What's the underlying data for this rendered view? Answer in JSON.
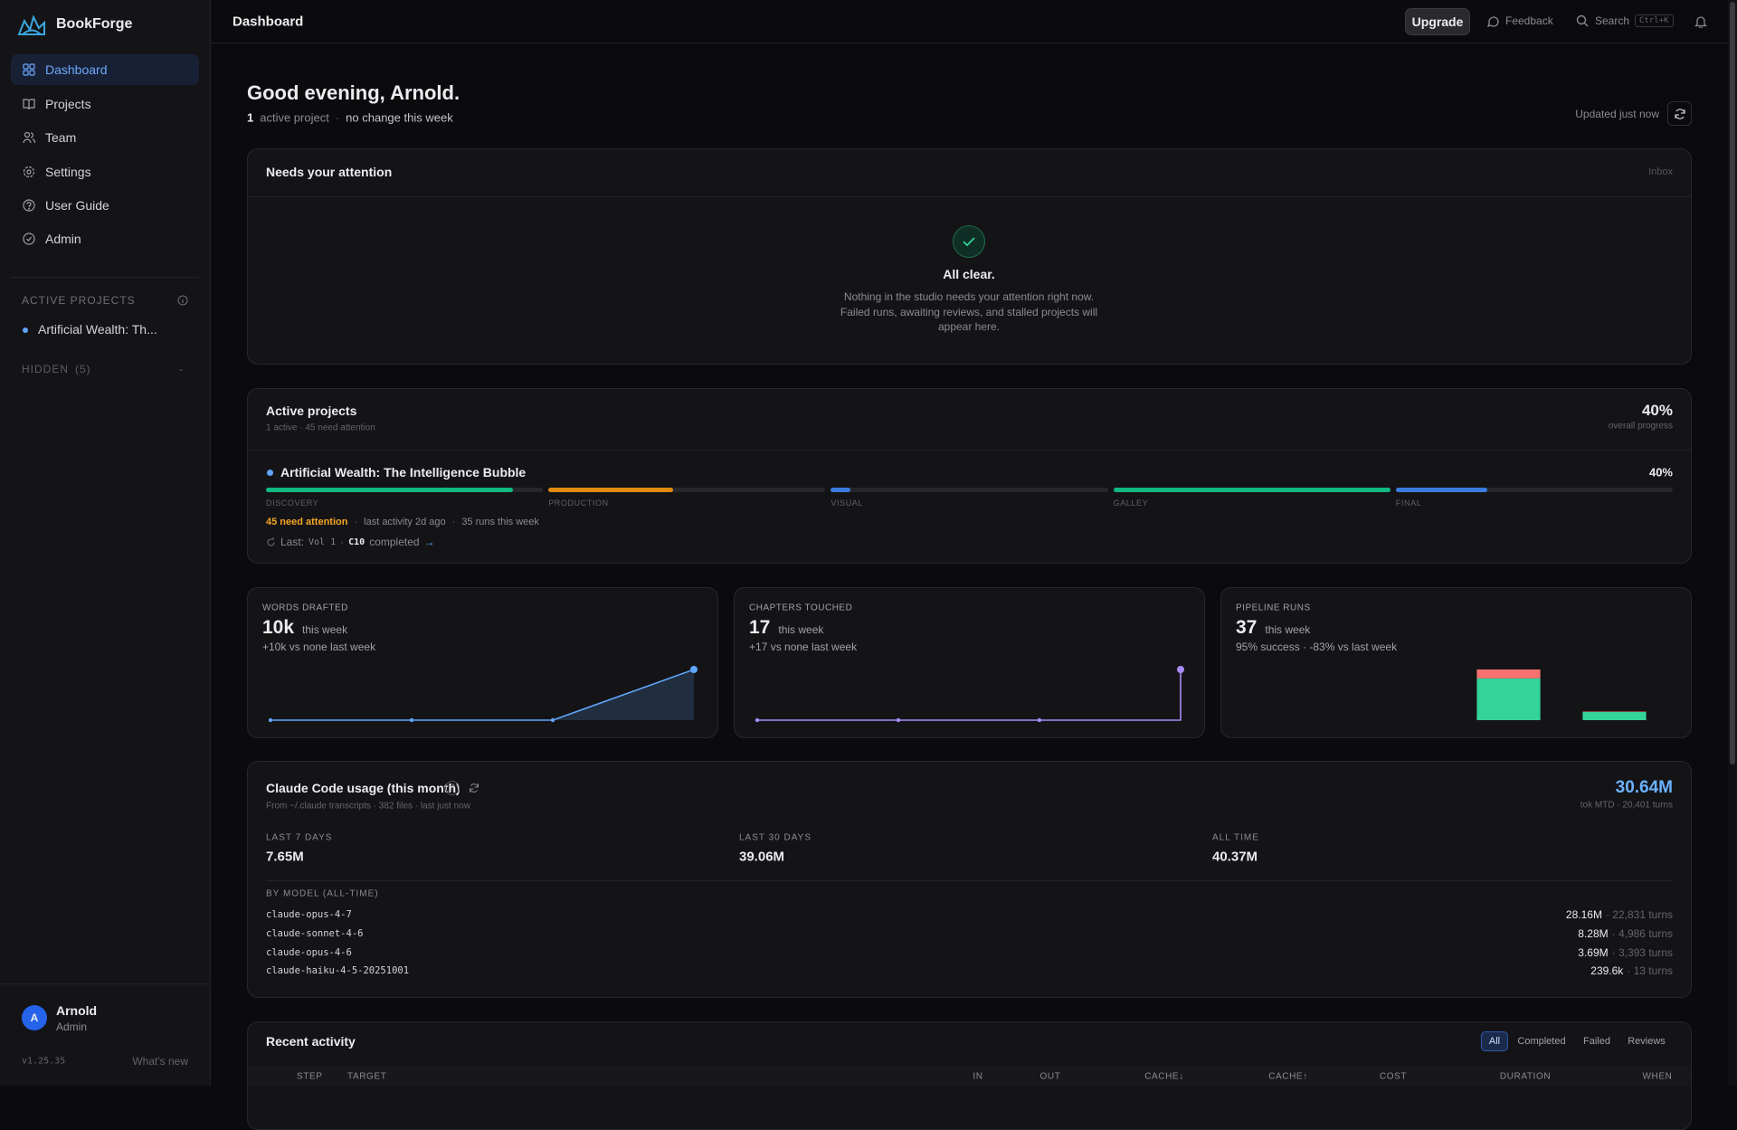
{
  "sidebar": {
    "brand": "BookForge",
    "nav": [
      "Dashboard",
      "Projects",
      "Team",
      "Settings",
      "User Guide",
      "Admin"
    ],
    "active_nav": 0,
    "active_projects_label": "ACTIVE PROJECTS",
    "projects": [
      "Artificial Wealth: Th..."
    ],
    "hidden_label": "HIDDEN",
    "hidden_count": "(5)",
    "user": {
      "initial": "A",
      "name": "Arnold",
      "role": "Admin"
    },
    "version": "v1.25.35",
    "whats_new": "What's new"
  },
  "topbar": {
    "title": "Dashboard",
    "upgrade": "Upgrade",
    "feedback": "Feedback",
    "search": "Search",
    "shortcut": "Ctrl+K"
  },
  "header": {
    "greeting": "Good evening, Arnold.",
    "active_count": 1,
    "active_label": "active project",
    "separator": "·",
    "change": "no change this week",
    "updated": "Updated just now"
  },
  "attention": {
    "title": "Needs your attention",
    "link": "Inbox",
    "status": "All clear.",
    "message": "Nothing in the studio needs your attention right now. Failed runs, awaiting reviews, and stalled projects will appear here."
  },
  "projects": {
    "title": "Active projects",
    "subtitle": "1 active · 45 need attention",
    "overall": "40%",
    "overall_label": "overall progress",
    "items": [
      {
        "name": "Artificial Wealth: The Intelligence Bubble",
        "progress": "40%",
        "stages": [
          {
            "label": "DISCOVERY",
            "progress": 89,
            "color": "#10b981"
          },
          {
            "label": "PRODUCTION",
            "progress": 45,
            "color": "#e08a12"
          },
          {
            "label": "VISUAL",
            "progress": 7,
            "color": "#3b7be0"
          },
          {
            "label": "GALLEY",
            "progress": 100,
            "color": "#10b981"
          },
          {
            "label": "FINAL",
            "progress": 33,
            "color": "#3b7be0"
          }
        ],
        "attention": "45 need attention",
        "last_activity": "last activity 2d ago",
        "runs": "35 runs this week",
        "last_label": "Last:",
        "last_volume": "Vol 1",
        "last_chapter": "C10",
        "last_status": "completed",
        "last_arrow": "→"
      }
    ]
  },
  "chart_data": [
    {
      "type": "line",
      "title": "WORDS DRAFTED",
      "headline": "10k",
      "headline_suffix": "this week",
      "subtitle": "+10k vs none last week",
      "categories": [
        null,
        null,
        null,
        null
      ],
      "values": [
        0,
        0,
        0,
        10000
      ],
      "ylim": [
        0,
        10000
      ],
      "color": "#60a5fa",
      "area": true
    },
    {
      "type": "line",
      "title": "CHAPTERS TOUCHED",
      "headline": "17",
      "headline_suffix": "this week",
      "subtitle": "+17 vs none last week",
      "categories": [
        null,
        null,
        null,
        null
      ],
      "values": [
        0,
        0,
        0,
        17
      ],
      "ylim": [
        0,
        17
      ],
      "color": "#a78bfa",
      "step": true
    },
    {
      "type": "bar",
      "title": "PIPELINE RUNS",
      "headline": "37",
      "headline_suffix": "this week",
      "subtitle": "95% success · -83% vs last week",
      "categories": [
        null,
        null,
        null,
        null
      ],
      "stacked": true,
      "ylim": [
        0,
        218
      ],
      "series": [
        {
          "color": "#34d399",
          "values": [
            0,
            0,
            180,
            35
          ]
        },
        {
          "color": "#f87171",
          "values": [
            0,
            0,
            38,
            2
          ]
        }
      ]
    }
  ],
  "usage": {
    "title": "Claude Code usage (this month)",
    "help": "?",
    "subtitle": "From ~/.claude transcripts · 382 files · last just now",
    "total": "30.64M",
    "total_detail": "tok MTD · 20,401 turns",
    "periods": [
      {
        "label": "LAST 7 DAYS",
        "value": "7.65M"
      },
      {
        "label": "LAST 30 DAYS",
        "value": "39.06M"
      },
      {
        "label": "ALL TIME",
        "value": "40.37M"
      }
    ],
    "by_model_label": "BY MODEL (ALL-TIME)",
    "models": [
      {
        "name": "claude-opus-4-7",
        "tokens": "28.16M",
        "turns": "· 22,831 turns"
      },
      {
        "name": "claude-sonnet-4-6",
        "tokens": "8.28M",
        "turns": "· 4,986 turns"
      },
      {
        "name": "claude-opus-4-6",
        "tokens": "3.69M",
        "turns": "· 3,393 turns"
      },
      {
        "name": "claude-haiku-4-5-20251001",
        "tokens": "239.6k",
        "turns": "· 13 turns"
      }
    ]
  },
  "activity": {
    "title": "Recent activity",
    "filters": [
      "All",
      "Completed",
      "Failed",
      "Reviews"
    ],
    "active_filter": 0,
    "columns": [
      "STEP",
      "TARGET",
      "IN",
      "OUT",
      "CACHE↓",
      "CACHE↑",
      "COST",
      "DURATION",
      "WHEN"
    ]
  }
}
